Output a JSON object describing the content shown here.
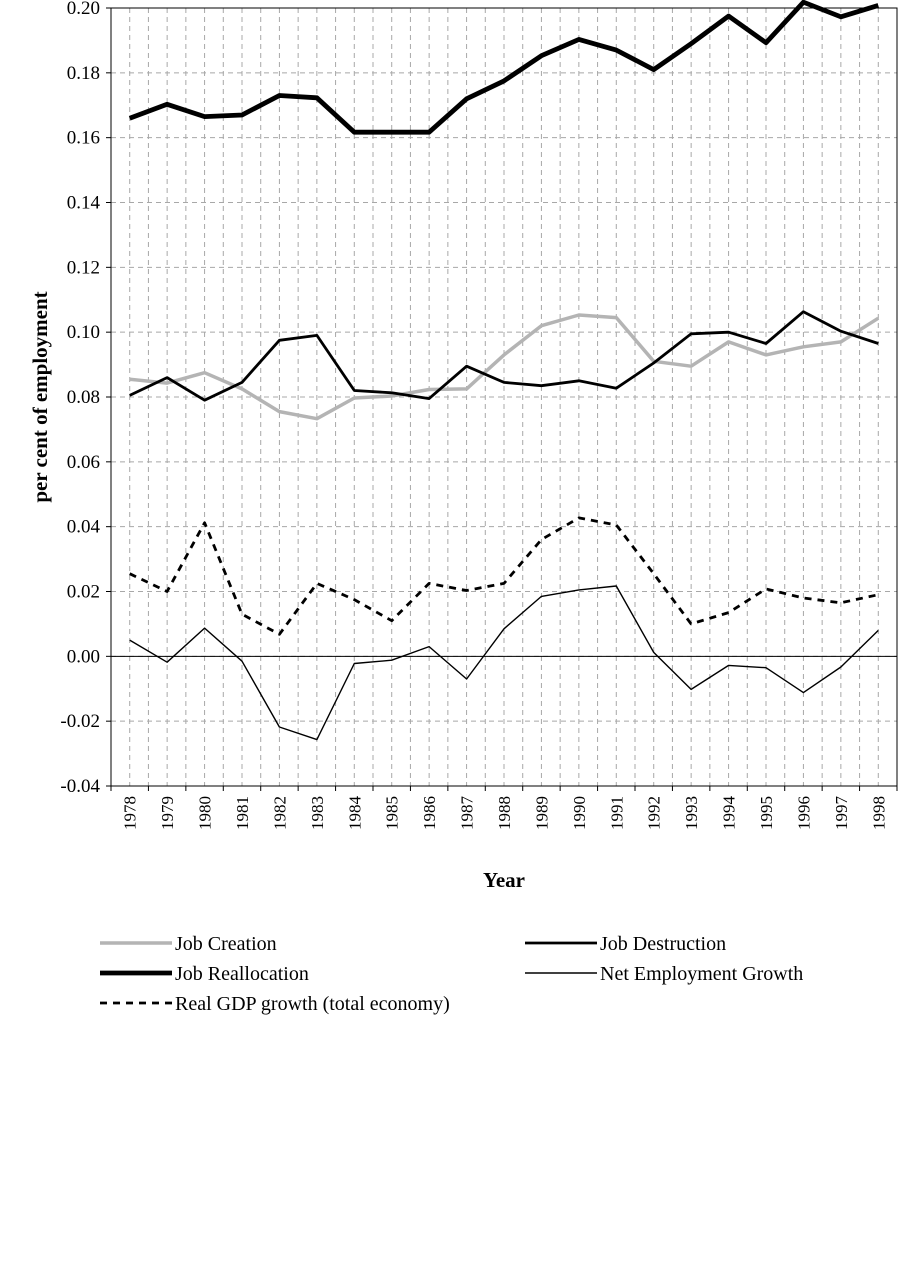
{
  "chart_data": {
    "type": "line",
    "title": "",
    "xlabel": "Year",
    "ylabel": "per cent of employment",
    "ylim": [
      -0.04,
      0.2
    ],
    "ytick_step": 0.02,
    "y_tick_labels": [
      "-0.04",
      "-0.02",
      "0.00",
      "0.02",
      "0.04",
      "0.06",
      "0.08",
      "0.10",
      "0.12",
      "0.14",
      "0.16",
      "0.18",
      "0.20"
    ],
    "x": [
      "1978",
      "1979",
      "1980",
      "1981",
      "1982",
      "1983",
      "1984",
      "1985",
      "1986",
      "1987",
      "1988",
      "1989",
      "1990",
      "1991",
      "1992",
      "1993",
      "1994",
      "1995",
      "1996",
      "1997",
      "1998"
    ],
    "grid": true,
    "legend_position": "bottom",
    "series": [
      {
        "name": "Job Creation",
        "color": "#b4b4b4",
        "style": "thick-gray",
        "values": [
          0.0855,
          0.0843,
          0.0875,
          0.0825,
          0.0755,
          0.0733,
          0.0797,
          0.0803,
          0.0823,
          0.0825,
          0.093,
          0.102,
          0.1053,
          0.1045,
          0.091,
          0.0895,
          0.097,
          0.093,
          0.0955,
          0.097,
          0.1043
        ]
      },
      {
        "name": "Job Destruction",
        "color": "#000000",
        "style": "medium",
        "values": [
          0.0805,
          0.086,
          0.079,
          0.0845,
          0.0975,
          0.099,
          0.082,
          0.0813,
          0.0795,
          0.0895,
          0.0845,
          0.0835,
          0.085,
          0.0827,
          0.0905,
          0.0995,
          0.1,
          0.0965,
          0.1063,
          0.1003,
          0.0965
        ]
      },
      {
        "name": "Job Reallocation",
        "color": "#000000",
        "style": "thick",
        "values": [
          0.166,
          0.1703,
          0.1665,
          0.167,
          0.173,
          0.1723,
          0.1617,
          0.1617,
          0.1617,
          0.172,
          0.1775,
          0.1853,
          0.1903,
          0.187,
          0.181,
          0.189,
          0.1975,
          0.1893,
          0.2018,
          0.1973,
          0.2008
        ]
      },
      {
        "name": "Net Employment Growth",
        "color": "#000000",
        "style": "thin",
        "values": [
          0.005,
          -0.0018,
          0.0087,
          -0.0015,
          -0.0218,
          -0.0257,
          -0.0022,
          -0.0012,
          0.003,
          -0.007,
          0.0085,
          0.0185,
          0.0205,
          0.0217,
          0.0012,
          -0.0102,
          -0.0028,
          -0.0035,
          -0.0112,
          -0.0033,
          0.008
        ]
      },
      {
        "name": "Real GDP growth (total economy)",
        "color": "#000000",
        "style": "dashed",
        "values": [
          0.0255,
          0.02,
          0.0412,
          0.013,
          0.0068,
          0.0225,
          0.0175,
          0.011,
          0.0225,
          0.0203,
          0.0225,
          0.036,
          0.0427,
          0.0405,
          0.0255,
          0.01,
          0.0135,
          0.0208,
          0.018,
          0.0165,
          0.019
        ]
      }
    ]
  }
}
